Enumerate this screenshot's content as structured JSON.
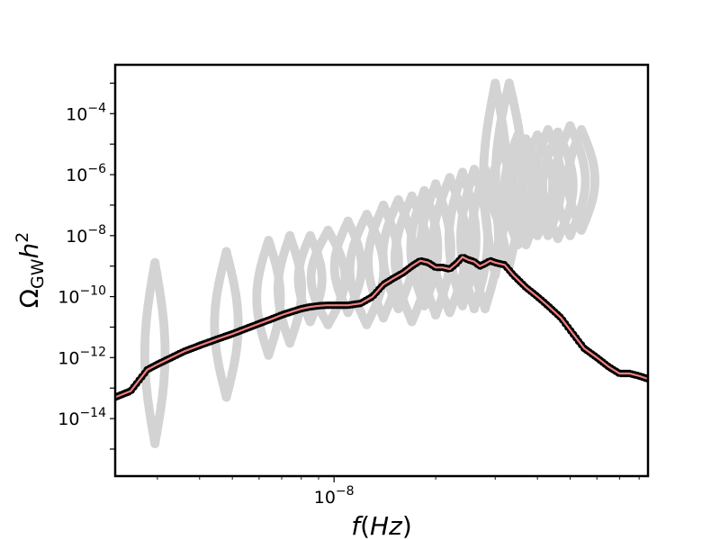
{
  "chart_data": {
    "type": "scatter",
    "xscale": "log",
    "yscale": "log",
    "xlim": [
      2.25e-09,
      8.5e-08
    ],
    "ylim": [
      1.3e-16,
      0.004
    ],
    "grid": false,
    "legend": "none",
    "xlabel": "f(Hz)",
    "ylabel": "Ω_GW h^2",
    "xticks": [
      {
        "value": 1e-08,
        "base": "10",
        "exp": "−8"
      }
    ],
    "yticks": [
      {
        "value": 0.0001,
        "base": "10",
        "exp": "−4"
      },
      {
        "value": 1e-06,
        "base": "10",
        "exp": "−6"
      },
      {
        "value": 1e-08,
        "base": "10",
        "exp": "−8"
      },
      {
        "value": 1e-10,
        "base": "10",
        "exp": "−10"
      },
      {
        "value": 1e-12,
        "base": "10",
        "exp": "−12"
      },
      {
        "value": 1e-14,
        "base": "10",
        "exp": "−14"
      }
    ],
    "series": [
      {
        "role": "individual-sources",
        "color": "#d3d3d3",
        "marker": "circle",
        "columns": [
          {
            "x": 2.95e-09,
            "ymin": 1.5e-15,
            "ymax": 1.3e-09,
            "width": 0.03
          },
          {
            "x": 4.8e-09,
            "ymin": 5e-14,
            "ymax": 3e-09,
            "width": 0.035
          },
          {
            "x": 6.4e-09,
            "ymin": 1.2e-12,
            "ymax": 7e-09,
            "width": 0.035
          },
          {
            "x": 7.4e-09,
            "ymin": 3e-12,
            "ymax": 1e-08,
            "width": 0.035
          },
          {
            "x": 8.5e-09,
            "ymin": 1.5e-11,
            "ymax": 1e-08,
            "width": 0.035
          },
          {
            "x": 9.6e-09,
            "ymin": 1.2e-11,
            "ymax": 1.5e-08,
            "width": 0.05
          },
          {
            "x": 1.1e-08,
            "ymin": 3e-11,
            "ymax": 3e-08,
            "width": 0.04
          },
          {
            "x": 1.25e-08,
            "ymin": 1.2e-11,
            "ymax": 5e-08,
            "width": 0.05
          },
          {
            "x": 1.4e-08,
            "ymin": 2e-11,
            "ymax": 1e-07,
            "width": 0.045
          },
          {
            "x": 1.55e-08,
            "ymin": 4e-11,
            "ymax": 1.5e-07,
            "width": 0.045
          },
          {
            "x": 1.7e-08,
            "ymin": 1.5e-11,
            "ymax": 2e-07,
            "width": 0.05
          },
          {
            "x": 1.85e-08,
            "ymin": 5e-11,
            "ymax": 3e-07,
            "width": 0.04
          },
          {
            "x": 2e-08,
            "ymin": 2.5e-11,
            "ymax": 5e-07,
            "width": 0.045
          },
          {
            "x": 2.2e-08,
            "ymin": 3e-11,
            "ymax": 8e-07,
            "width": 0.05
          },
          {
            "x": 2.4e-08,
            "ymin": 5e-11,
            "ymax": 1.2e-06,
            "width": 0.04
          },
          {
            "x": 2.6e-08,
            "ymin": 4e-11,
            "ymax": 1.5e-06,
            "width": 0.04
          },
          {
            "x": 2.8e-08,
            "ymin": 4e-11,
            "ymax": 1.5e-06,
            "width": 0.04
          },
          {
            "x": 3e-08,
            "ymin": 5e-10,
            "ymax": 0.001,
            "width": 0.035
          },
          {
            "x": 3.15e-08,
            "ymin": 1.5e-08,
            "ymax": 6e-06,
            "width": 0.035
          },
          {
            "x": 3.3e-08,
            "ymin": 1e-09,
            "ymax": 0.001,
            "width": 0.04
          },
          {
            "x": 3.5e-08,
            "ymin": 5e-09,
            "ymax": 2e-05,
            "width": 0.04
          },
          {
            "x": 3.7e-08,
            "ymin": 5e-09,
            "ymax": 1.5e-05,
            "width": 0.04
          },
          {
            "x": 4e-08,
            "ymin": 1e-08,
            "ymax": 2e-05,
            "width": 0.045
          },
          {
            "x": 4.3e-08,
            "ymin": 1e-08,
            "ymax": 3e-05,
            "width": 0.04
          },
          {
            "x": 4.6e-08,
            "ymin": 8e-09,
            "ymax": 2.5e-05,
            "width": 0.045
          },
          {
            "x": 5e-08,
            "ymin": 1e-08,
            "ymax": 4e-05,
            "width": 0.045
          },
          {
            "x": 5.4e-08,
            "ymin": 1.5e-08,
            "ymax": 3e-05,
            "width": 0.04
          }
        ]
      },
      {
        "role": "total-spectrum",
        "marker_color": "#000000",
        "line_color": "#f08080",
        "x": [
          2.25e-09,
          2.5e-09,
          2.8e-09,
          3e-09,
          3.3e-09,
          3.6e-09,
          4e-09,
          4.5e-09,
          5e-09,
          5.5e-09,
          6e-09,
          6.5e-09,
          7e-09,
          7.5e-09,
          8e-09,
          8.5e-09,
          9e-09,
          9.5e-09,
          1e-08,
          1.1e-08,
          1.2e-08,
          1.3e-08,
          1.4e-08,
          1.5e-08,
          1.6e-08,
          1.7e-08,
          1.8e-08,
          1.9e-08,
          2e-08,
          2.1e-08,
          2.2e-08,
          2.3e-08,
          2.4e-08,
          2.5e-08,
          2.6e-08,
          2.7e-08,
          2.8e-08,
          2.9e-08,
          3e-08,
          3.2e-08,
          3.4e-08,
          3.7e-08,
          4e-08,
          4.3e-08,
          4.7e-08,
          5e-08,
          5.5e-08,
          6e-08,
          6.5e-08,
          7e-08,
          7.5e-08,
          8e-08,
          8.5e-08
        ],
        "y": [
          5e-14,
          8e-14,
          4e-13,
          6e-13,
          1e-12,
          1.6e-12,
          2.5e-12,
          4e-12,
          6e-12,
          9e-12,
          1.3e-11,
          1.8e-11,
          2.5e-11,
          3.2e-11,
          4e-11,
          4.6e-11,
          5e-11,
          5.2e-11,
          5.2e-11,
          5.2e-11,
          6e-11,
          1e-10,
          2.5e-10,
          4e-10,
          6e-10,
          1e-09,
          1.5e-09,
          1.3e-09,
          9e-10,
          9e-10,
          8e-10,
          1.2e-09,
          2e-09,
          1.6e-09,
          1.4e-09,
          1e-09,
          1.2e-09,
          1.5e-09,
          1.3e-09,
          1.1e-09,
          5e-10,
          2e-10,
          1e-10,
          5e-11,
          2e-11,
          8e-12,
          2e-12,
          1e-12,
          5e-13,
          3e-13,
          3e-13,
          2.5e-13,
          2e-13
        ]
      }
    ]
  }
}
